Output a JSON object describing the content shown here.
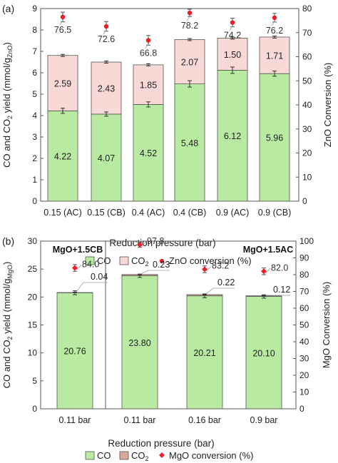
{
  "colors": {
    "co": "#b9eaa1",
    "co2": "#f8d9d6",
    "co2_mgo": "#d8a898",
    "marker": "#e8202a",
    "label_line": "#9a9a9a",
    "axis": "#555555"
  },
  "chart_data": [
    {
      "type": "bar",
      "panel_label": "(a)",
      "categories": [
        "0.15 (AC)",
        "0.15 (CB)",
        "0.4 (AC)",
        "0.4 (CB)",
        "0.9 (AC)",
        "0.9 (CB)"
      ],
      "series": [
        {
          "name": "CO",
          "values": [
            4.22,
            4.07,
            4.52,
            5.48,
            6.12,
            5.96
          ],
          "errors": [
            0.12,
            0.1,
            0.12,
            0.15,
            0.15,
            0.12
          ],
          "labels": [
            "4.22",
            "4.07",
            "4.52",
            "5.48",
            "6.12",
            "5.96"
          ]
        },
        {
          "name": "CO",
          "name_sub": "2",
          "values": [
            2.59,
            2.43,
            1.85,
            2.07,
            1.5,
            1.71
          ],
          "errors": [
            0.05,
            0.05,
            0.05,
            0.05,
            0.05,
            0.05
          ],
          "labels": [
            "2.59",
            "2.43",
            "1.85",
            "2.07",
            "1.50",
            "1.71"
          ]
        }
      ],
      "conversion": {
        "name": "ZnO conversion (%)",
        "values": [
          76.5,
          72.6,
          66.8,
          78.2,
          74.2,
          76.2
        ],
        "errors": [
          2.0,
          2.0,
          2.0,
          1.5,
          1.8,
          1.8
        ],
        "labels": [
          "76.5",
          "72.6",
          "66.8",
          "78.2",
          "74.2",
          "76.2"
        ]
      },
      "ylabel": {
        "pre": "CO and CO",
        "sub1": "2",
        "mid": " yield (mmol/g",
        "sub2": "ZnO",
        "post": ")"
      },
      "y2label": "ZnO Conversion (%)",
      "xlabel": "Reduction pressure (bar)",
      "ylim": [
        0,
        9
      ],
      "yticks": [
        "0",
        "1",
        "2",
        "3",
        "4",
        "5",
        "6",
        "7",
        "8",
        "9"
      ],
      "y2lim": [
        0,
        80
      ],
      "y2ticks": [
        "0",
        "10",
        "20",
        "30",
        "40",
        "50",
        "60",
        "70",
        "80"
      ],
      "legend": [
        {
          "kind": "co",
          "text": "CO"
        },
        {
          "kind": "co2",
          "text": "CO",
          "sub": "2"
        },
        {
          "kind": "marker",
          "text": "ZnO conversion (%)"
        }
      ],
      "legend_position": "bottom"
    },
    {
      "type": "bar",
      "panel_label": "(b)",
      "categories": [
        "0.11 bar",
        "0.11 bar",
        "0.16 bar",
        "0.9 bar"
      ],
      "group_labels": [
        "MgO+1.5CB",
        "MgO+1.5AC"
      ],
      "series": [
        {
          "name": "CO",
          "values": [
            20.76,
            23.8,
            20.21,
            20.1
          ],
          "errors": [
            0.35,
            0.3,
            0.35,
            0.3
          ],
          "labels": [
            "20.76",
            "23.80",
            "20.21",
            "20.10"
          ]
        },
        {
          "name": "CO",
          "name_sub": "2",
          "values": [
            0.04,
            0.23,
            0.22,
            0.12
          ],
          "errors": [
            0.05,
            0.05,
            0.05,
            0.05
          ],
          "labels": [
            "0.04",
            "0.23",
            "0.22",
            "0.12"
          ]
        }
      ],
      "conversion": {
        "name": "MgO conversion (%)",
        "values": [
          84.0,
          97.8,
          83.2,
          82.0
        ],
        "errors": [
          2.0,
          1.5,
          2.0,
          2.0
        ],
        "labels": [
          "84.0",
          "97.8",
          "83.2",
          "82.0"
        ]
      },
      "ylabel": {
        "pre": "CO and CO",
        "sub1": "2",
        "mid": " yield (mmol/g",
        "sub2": "MgO",
        "post": ")"
      },
      "y2label": "MgO Conversion (%)",
      "xlabel": "Reduction pressure (bar)",
      "ylim": [
        0,
        30
      ],
      "yticks": [
        "0",
        "5",
        "10",
        "15",
        "20",
        "25",
        "30"
      ],
      "y2lim": [
        0,
        100
      ],
      "y2ticks": [
        "0",
        "10",
        "20",
        "30",
        "40",
        "50",
        "60",
        "70",
        "80",
        "90",
        "100"
      ],
      "legend": [
        {
          "kind": "co",
          "text": "CO"
        },
        {
          "kind": "co2",
          "text": "CO",
          "sub": "2"
        },
        {
          "kind": "diamond",
          "text": "MgO conversion (%)"
        }
      ],
      "legend_position": "bottom"
    }
  ]
}
